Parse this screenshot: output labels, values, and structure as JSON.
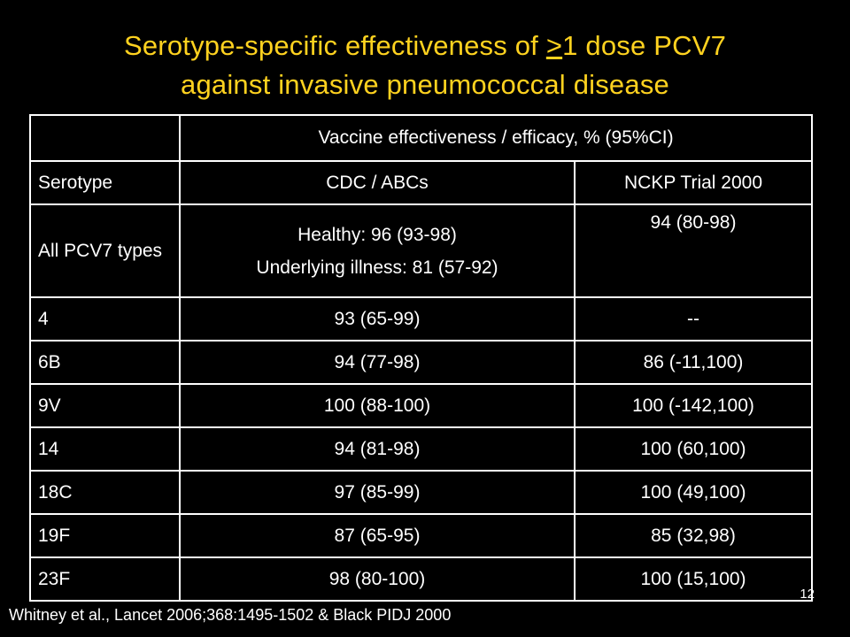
{
  "title": {
    "line1_prefix": "Serotype-specific effectiveness of ",
    "line1_underlined": ">",
    "line1_suffix": "1 dose PCV7",
    "line2": "against invasive pneumococcal disease",
    "color": "#ffd21f"
  },
  "table": {
    "top_header": "Vaccine effectiveness / efficacy, % (95%CI)",
    "columns": [
      "Serotype",
      "CDC / ABCs",
      "NCKP Trial 2000"
    ],
    "all_types_row": {
      "serotype": "All PCV7 types",
      "cdc_line1": "Healthy: 96 (93-98)",
      "cdc_line2": "Underlying illness: 81 (57-92)",
      "nckp": "94 (80-98)"
    },
    "rows": [
      {
        "serotype": "4",
        "cdc": "93 (65-99)",
        "nckp": "--"
      },
      {
        "serotype": "6B",
        "cdc": "94 (77-98)",
        "nckp": "86 (-11,100)"
      },
      {
        "serotype": "9V",
        "cdc": "100 (88-100)",
        "nckp": "100 (-142,100)"
      },
      {
        "serotype": "14",
        "cdc": "94 (81-98)",
        "nckp": "100 (60,100)"
      },
      {
        "serotype": "18C",
        "cdc": "97 (85-99)",
        "nckp": "100 (49,100)"
      },
      {
        "serotype": "19F",
        "cdc": "87 (65-95)",
        "nckp": "85 (32,98)"
      },
      {
        "serotype": "23F",
        "cdc": "98 (80-100)",
        "nckp": "100 (15,100)"
      }
    ]
  },
  "slide_number": "12",
  "citation": "Whitney et al., Lancet 2006;368:1495-1502 & Black PIDJ 2000"
}
